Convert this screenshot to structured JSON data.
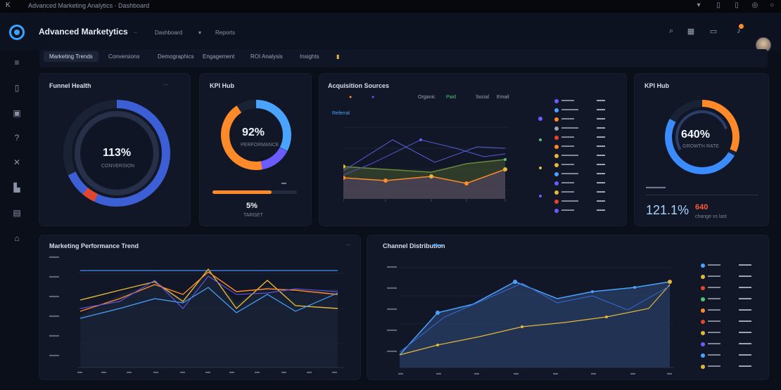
{
  "titlebar": {
    "title": "Advanced Marketing Analytics · Dashboard"
  },
  "header": {
    "brand": "Advanced Marketytics",
    "nav": [
      "Dashboard",
      "Reports"
    ],
    "icons": [
      "search-icon",
      "grid-icon",
      "chat-icon",
      "bell-icon",
      "avatar"
    ]
  },
  "tabs": [
    "Marketing Trends",
    "Conversions",
    "Demographics",
    "Engagement",
    "ROI Analysis",
    "Insights"
  ],
  "panels": {
    "funnel": {
      "title": "Funnel Health",
      "subtitle": "",
      "value": "113%",
      "caption": "CONVERSION",
      "footer": ""
    },
    "kpi1": {
      "title": "KPI Hub",
      "value": "92%",
      "caption": "PERFORMANCE",
      "bar_value": "5%",
      "bar_caption": "TARGET"
    },
    "acq": {
      "title": "Acquisition Sources",
      "legend": [
        "Organic",
        "Paid",
        "Social",
        "Email",
        "Referral"
      ],
      "table_rows": 13
    },
    "kpi2": {
      "title": "KPI Hub",
      "value": "640%",
      "caption": "GROWTH RATE",
      "footer_value": "121.1%",
      "footer_value2": "640",
      "footer_caption": "change vs last"
    },
    "trend": {
      "title": "Marketing Performance Trend"
    },
    "dist": {
      "title": "Channel Distribution"
    }
  },
  "colors": {
    "accent": "#3aa2ff",
    "orange": "#ff8a2a",
    "yellow": "#e4b83a",
    "green": "#55c27a",
    "purple": "#6a5cff",
    "background": "#0b0f19",
    "panel": "#111726"
  }
}
